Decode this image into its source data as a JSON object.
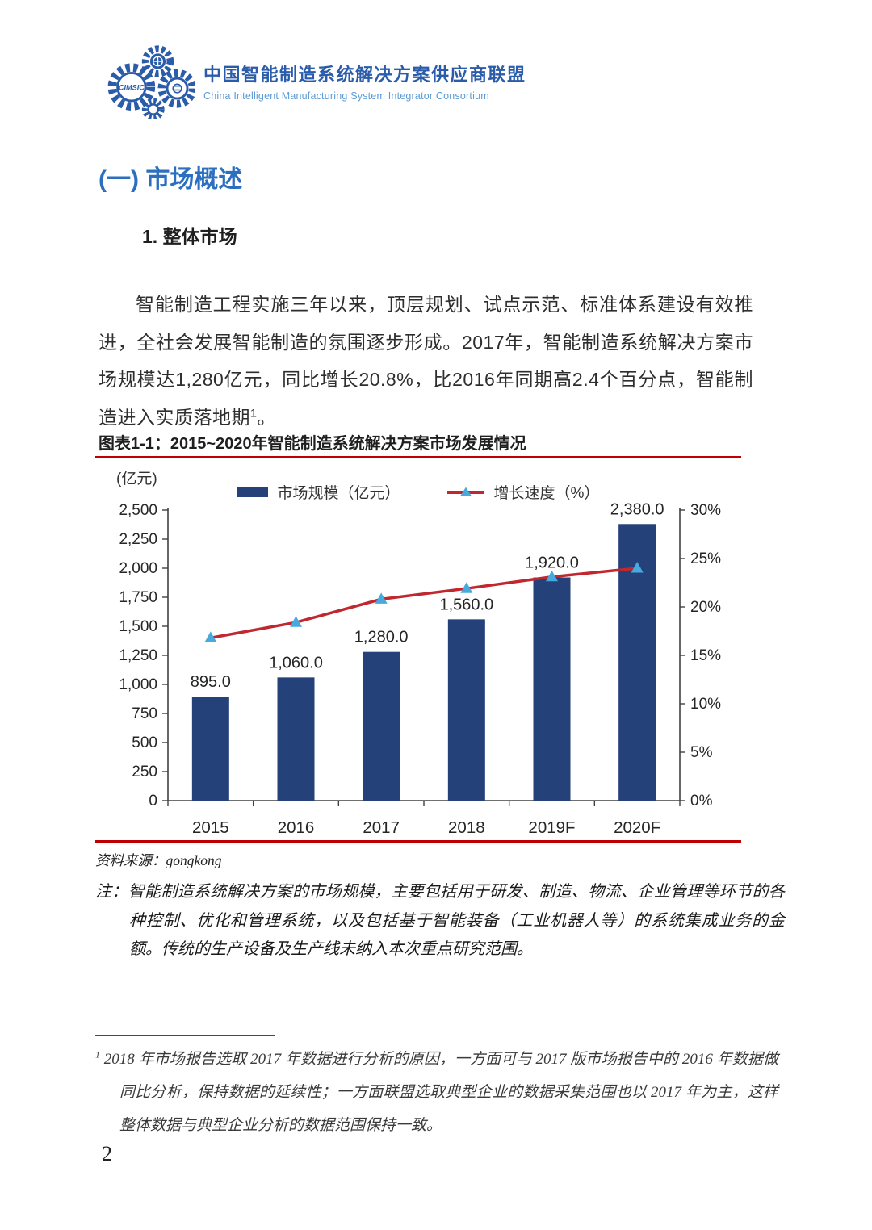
{
  "header": {
    "logo_acronym": "CIMSIC",
    "org_cn": "中国智能制造系统解决方案供应商联盟",
    "org_en": "China Intelligent Manufacturing System Integrator Consortium"
  },
  "section": {
    "heading": "(一) 市场概述",
    "subheading": "1. 整体市场",
    "paragraph": "智能制造工程实施三年以来，顶层规划、试点示范、标准体系建设有效推进，全社会发展智能制造的氛围逐步形成。2017年，智能制造系统解决方案市场规模达1,280亿元，同比增长20.8%，比2016年同期高2.4个百分点，智能制造进入实质落地期",
    "paragraph_footnote_ref": "1",
    "paragraph_end": "。"
  },
  "figure": {
    "caption": "图表1-1：2015~2020年智能制造系统解决方案市场发展情况",
    "unit_label": "(亿元)",
    "source_label": "资料来源：",
    "source": "gongkong",
    "note_label": "注：",
    "note": "智能制造系统解决方案的市场规模，主要包括用于研发、制造、物流、企业管理等环节的各种控制、优化和管理系统，以及包括基于智能装备（工业机器人等）的系统集成业务的金额。传统的生产设备及生产线未纳入本次重点研究范围。"
  },
  "chart_data": {
    "type": "bar",
    "categories": [
      "2015",
      "2016",
      "2017",
      "2018",
      "2019F",
      "2020F"
    ],
    "series": [
      {
        "name": "市场规模（亿元）",
        "type": "bar",
        "axis": "left",
        "values": [
          895.0,
          1060.0,
          1280.0,
          1560.0,
          1920.0,
          2380.0
        ],
        "color": "#24417a"
      },
      {
        "name": "增长速度（%）",
        "type": "line",
        "axis": "right",
        "values": [
          16.8,
          18.4,
          20.8,
          21.9,
          23.1,
          24.0
        ],
        "color": "#c0272f",
        "marker_color": "#47aadf"
      }
    ],
    "bar_labels": [
      "895.0",
      "1,060.0",
      "1,280.0",
      "1,560.0",
      "1,920.0",
      "2,380.0"
    ],
    "left_axis": {
      "label": "(亿元)",
      "min": 0,
      "max": 2500,
      "step": 250
    },
    "right_axis": {
      "min": 0,
      "max": 30,
      "step": 5,
      "suffix": "%"
    },
    "grid": false,
    "legend_position": "top",
    "title": "2015~2020年智能制造系统解决方案市场发展情况"
  },
  "footnote": {
    "marker": "1",
    "text": "2018 年市场报告选取 2017 年数据进行分析的原因，一方面可与 2017 版市场报告中的 2016 年数据做同比分析，保持数据的延续性；一方面联盟选取典型企业的数据采集范围也以 2017 年为主，这样整体数据与典型企业分析的数据范围保持一致。"
  },
  "page": {
    "number": "2"
  },
  "colors": {
    "accent_red_rule": "#c00000",
    "bar_navy": "#24417a",
    "line_red": "#c0272f",
    "marker_blue": "#47aadf",
    "heading_blue": "#2b6fbe",
    "logo_blue": "#2a5caa"
  }
}
